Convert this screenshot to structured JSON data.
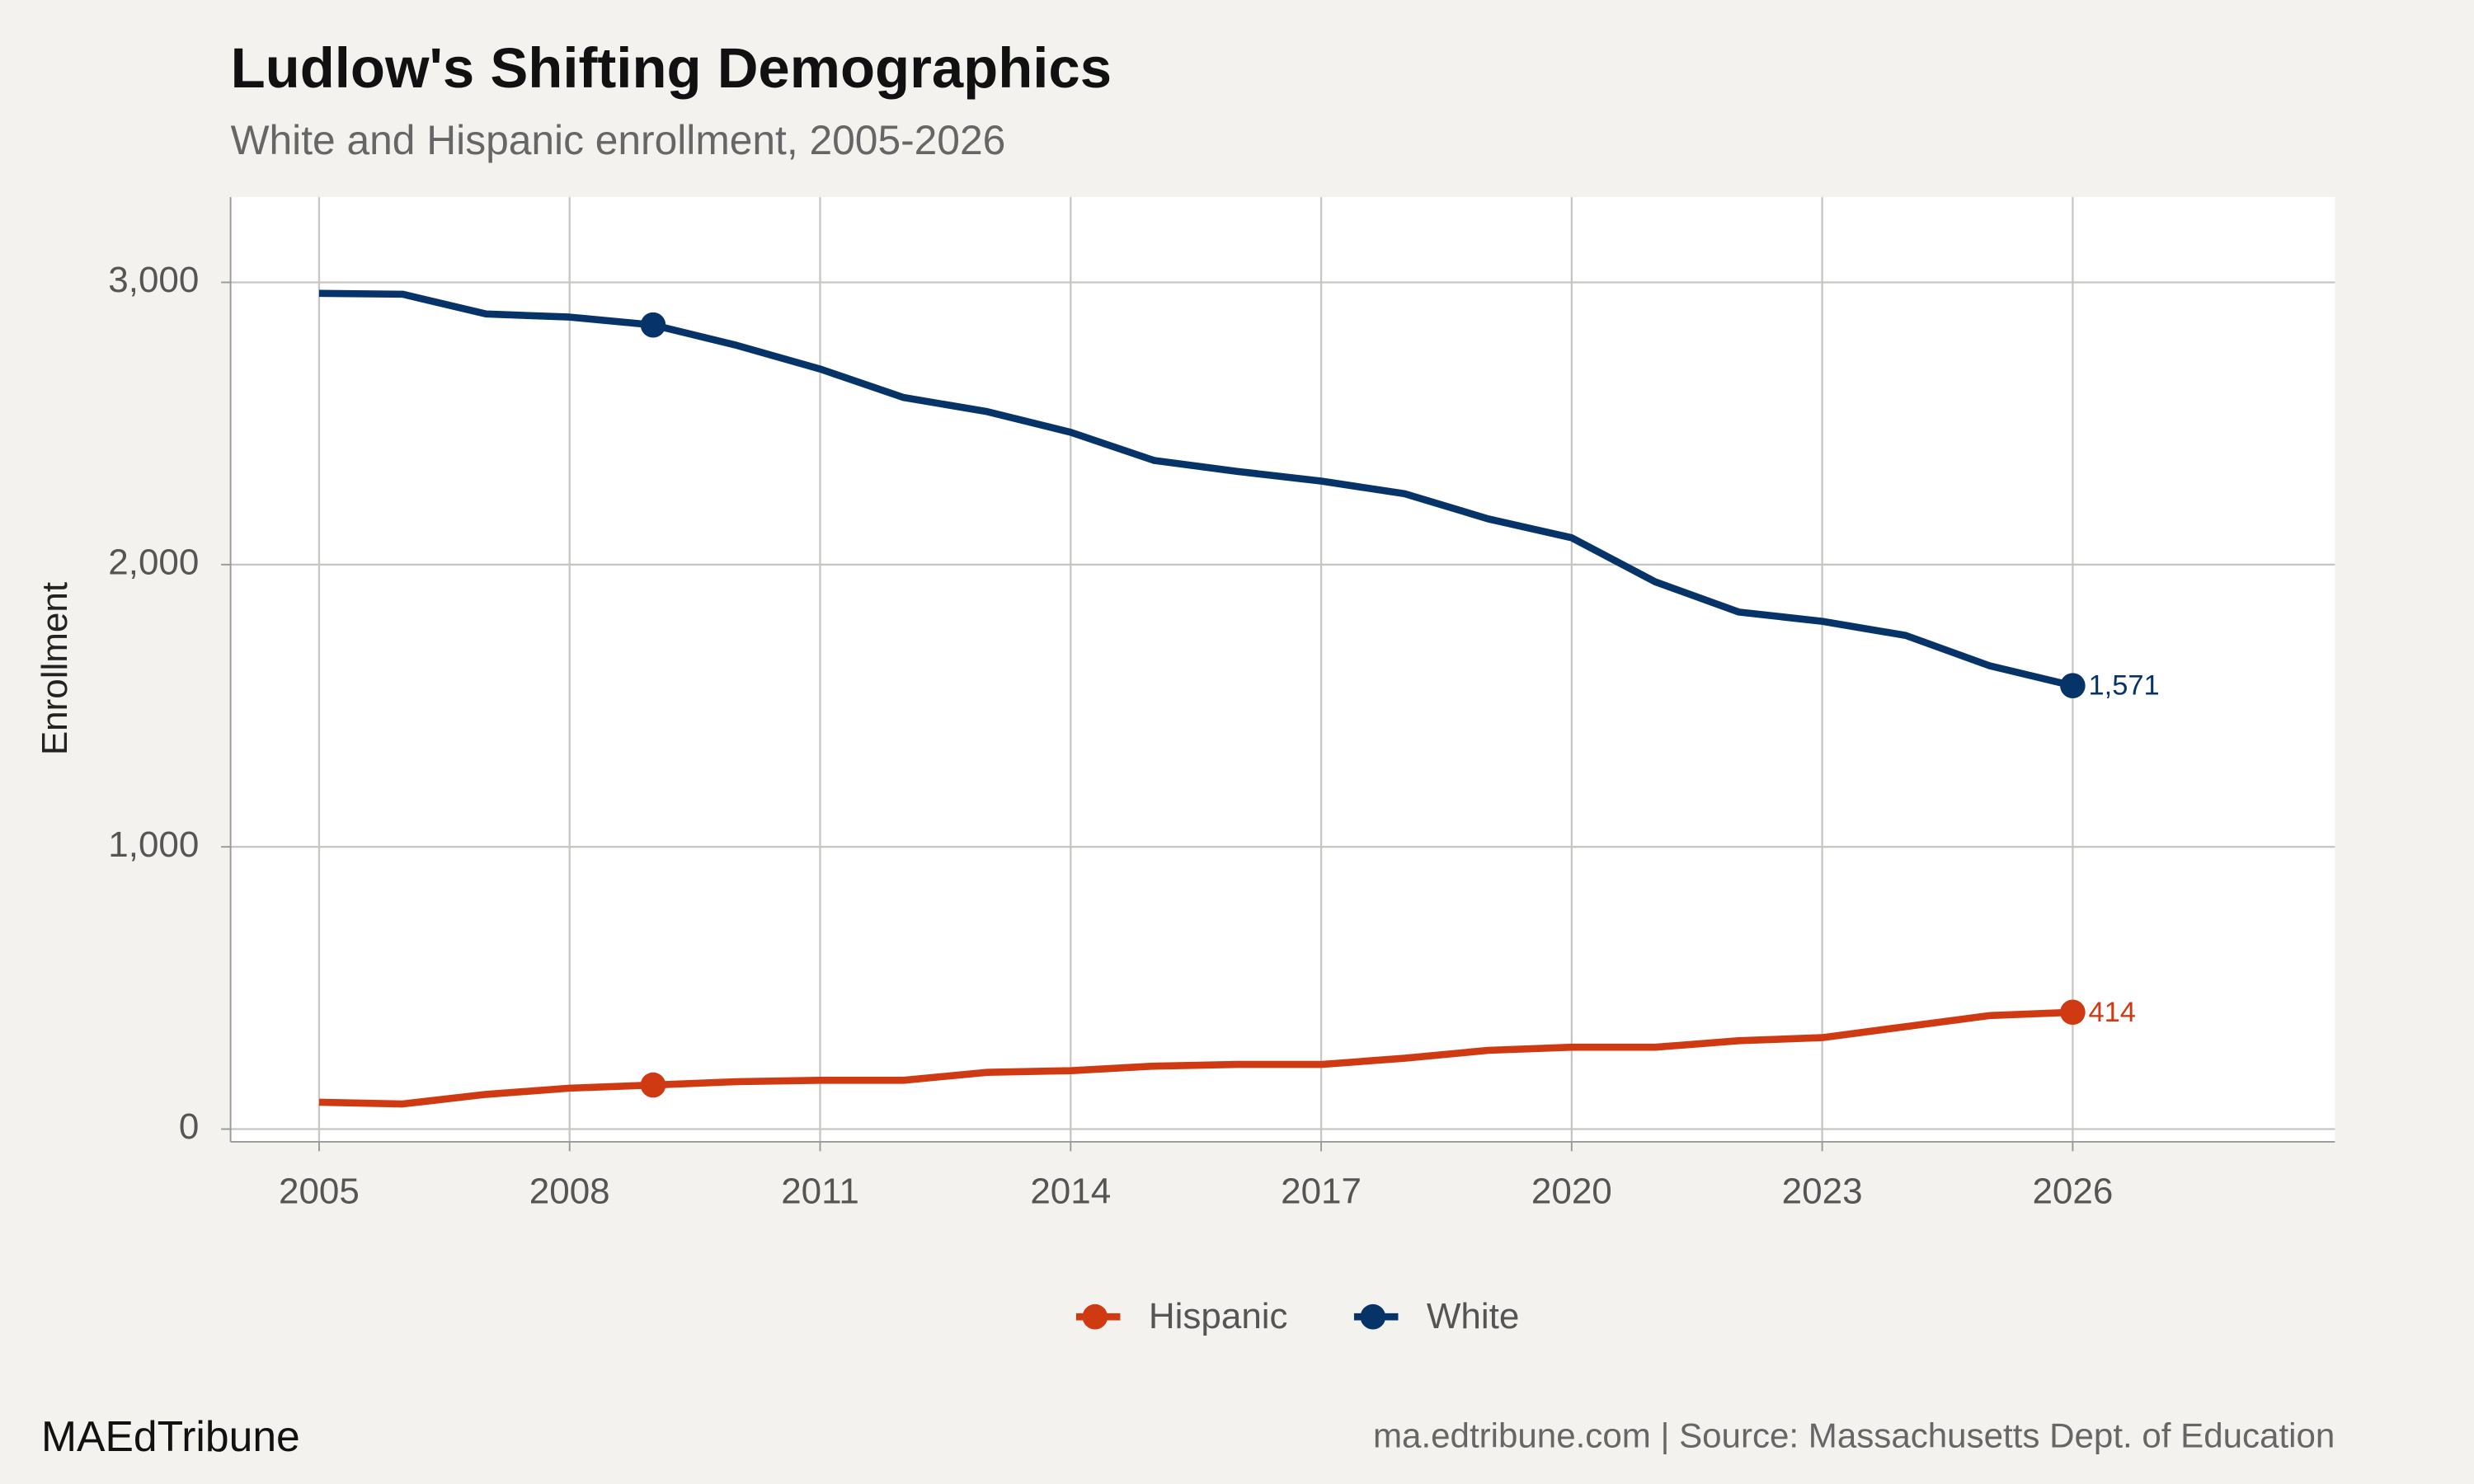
{
  "chart_data": {
    "type": "line",
    "title": "Ludlow's Shifting Demographics",
    "subtitle": "White and Hispanic enrollment, 2005-2026",
    "y_label": "Enrollment",
    "source": "ma.edtribune.com | Source: Massachusetts Dept. of Education",
    "brand": "MAEdTribune",
    "x": [
      2005,
      2006,
      2007,
      2008,
      2009,
      2010,
      2011,
      2012,
      2013,
      2014,
      2015,
      2016,
      2017,
      2018,
      2019,
      2020,
      2021,
      2022,
      2023,
      2024,
      2025,
      2026
    ],
    "series": [
      {
        "name": "Hispanic",
        "color": "#d03a12",
        "values": [
          95,
          89,
          123,
          145,
          156,
          168,
          173,
          173,
          201,
          207,
          223,
          229,
          229,
          251,
          279,
          290,
          290,
          313,
          324,
          363,
          402,
          414
        ],
        "value_labels": [
          null,
          null,
          null,
          null,
          null,
          null,
          null,
          null,
          null,
          null,
          null,
          null,
          null,
          null,
          null,
          null,
          null,
          null,
          null,
          null,
          null,
          "414"
        ]
      },
      {
        "name": "White",
        "color": "#063468",
        "values": [
          2961,
          2958,
          2888,
          2877,
          2849,
          2777,
          2693,
          2592,
          2542,
          2469,
          2369,
          2330,
          2296,
          2251,
          2162,
          2095,
          1939,
          1832,
          1799,
          1749,
          1642,
          1571
        ],
        "value_labels": [
          null,
          null,
          null,
          null,
          null,
          null,
          null,
          null,
          null,
          null,
          null,
          null,
          null,
          null,
          null,
          null,
          null,
          null,
          null,
          null,
          null,
          "1,571"
        ]
      }
    ],
    "markers_at": [
      2009,
      2026
    ],
    "xlim": [
      2003.94,
      2029.14
    ],
    "xticks": [
      2005,
      2008,
      2011,
      2014,
      2017,
      2020,
      2023,
      2026
    ],
    "ylim": [
      -45,
      3302
    ],
    "yticks": [
      0,
      {
        "value": 1000,
        "label": "1,000"
      },
      {
        "value": 2000,
        "label": "2,000"
      },
      {
        "value": 3000,
        "label": "3,000"
      }
    ],
    "grid": true,
    "legend": "bottom"
  }
}
